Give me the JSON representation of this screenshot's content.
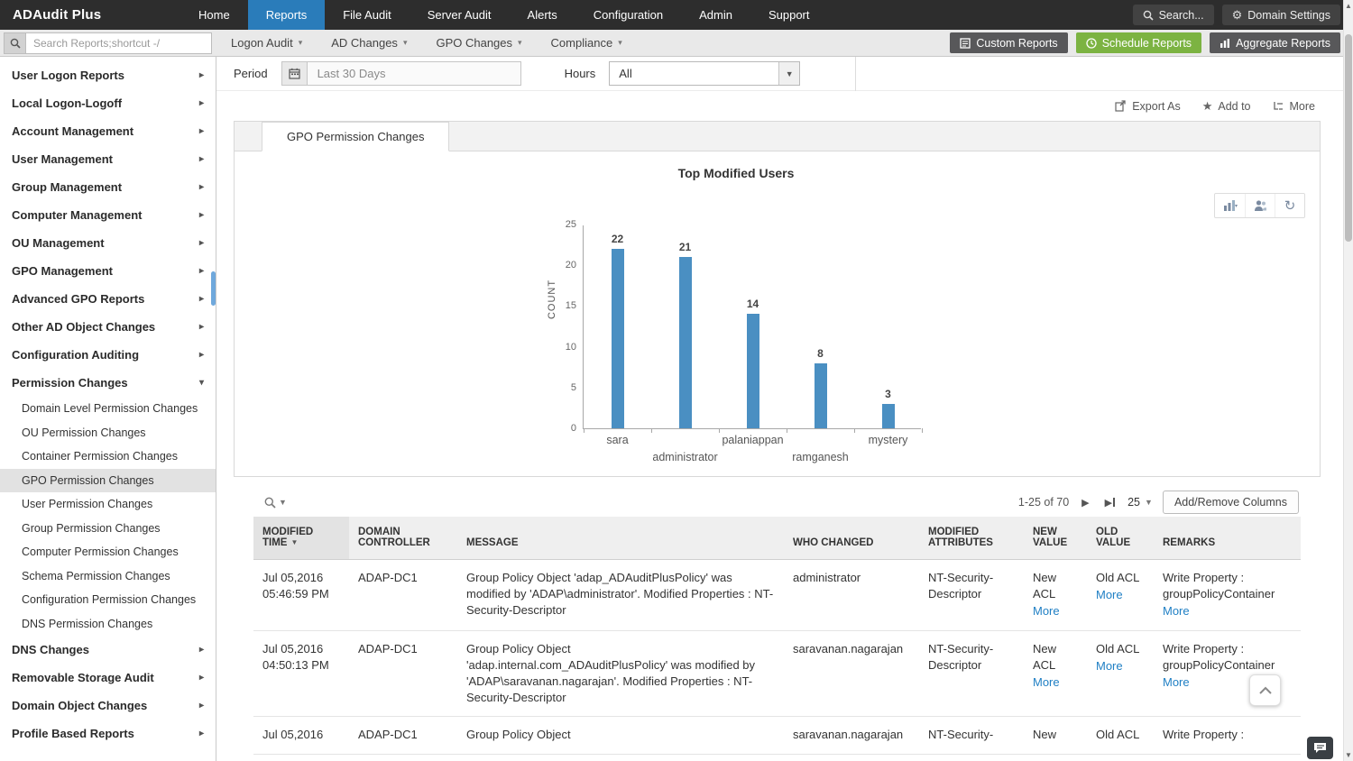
{
  "colors": {
    "accent_blue": "#2a7cba",
    "green": "#7cb342",
    "bar_blue": "#4a8fc2",
    "link_blue": "#1f7fc4",
    "topbar_bg": "#2d2d2d"
  },
  "topbar": {
    "logo": "ADAudit Plus",
    "nav": [
      {
        "label": "Home",
        "active": false
      },
      {
        "label": "Reports",
        "active": true
      },
      {
        "label": "File Audit",
        "active": false
      },
      {
        "label": "Server Audit",
        "active": false
      },
      {
        "label": "Alerts",
        "active": false
      },
      {
        "label": "Configuration",
        "active": false
      },
      {
        "label": "Admin",
        "active": false
      },
      {
        "label": "Support",
        "active": false
      }
    ],
    "search_label": "Search...",
    "domain_settings_label": "Domain Settings"
  },
  "toolbar": {
    "search_placeholder": "Search Reports;shortcut -/",
    "menus": [
      "Logon Audit",
      "AD Changes",
      "GPO Changes",
      "Compliance"
    ],
    "buttons": {
      "custom": "Custom Reports",
      "schedule": "Schedule Reports",
      "aggregate": "Aggregate Reports"
    }
  },
  "sidebar": {
    "items": [
      {
        "label": "User Logon Reports"
      },
      {
        "label": "Local Logon-Logoff"
      },
      {
        "label": "Account Management"
      },
      {
        "label": "User Management"
      },
      {
        "label": "Group Management"
      },
      {
        "label": "Computer Management"
      },
      {
        "label": "OU Management"
      },
      {
        "label": "GPO Management"
      },
      {
        "label": "Advanced GPO Reports"
      },
      {
        "label": "Other AD Object Changes"
      },
      {
        "label": "Configuration Auditing"
      },
      {
        "label": "Permission Changes",
        "expanded": true,
        "children": [
          "Domain Level Permission Changes",
          "OU Permission Changes",
          "Container Permission Changes",
          "GPO Permission Changes",
          "User Permission Changes",
          "Group Permission Changes",
          "Computer Permission Changes",
          "Schema Permission Changes",
          "Configuration Permission Changes",
          "DNS Permission Changes"
        ],
        "selected_child": "GPO Permission Changes"
      },
      {
        "label": "DNS Changes"
      },
      {
        "label": "Removable Storage Audit"
      },
      {
        "label": "Domain Object Changes"
      },
      {
        "label": "Profile Based Reports"
      }
    ]
  },
  "filters": {
    "period_label": "Period",
    "period_value": "Last 30 Days",
    "hours_label": "Hours",
    "hours_value": "All"
  },
  "actions": {
    "export_label": "Export As",
    "add_label": "Add to",
    "more_label": "More"
  },
  "report": {
    "tab": "GPO Permission Changes"
  },
  "chart_data": {
    "type": "bar",
    "title": "Top Modified Users",
    "ylabel": "COUNT",
    "categories": [
      "sara",
      "administrator",
      "palaniappan",
      "ramganesh",
      "mystery"
    ],
    "values": [
      22,
      21,
      14,
      8,
      3
    ],
    "ylim": [
      0,
      25
    ],
    "yticks": [
      0,
      5,
      10,
      15,
      20,
      25
    ],
    "bar_color": "#4a8fc2",
    "grid": false,
    "legend": false
  },
  "table": {
    "pagination": "1-25 of 70",
    "page_size": "25",
    "add_remove_label": "Add/Remove Columns",
    "columns": [
      "MODIFIED TIME",
      "DOMAIN CONTROLLER",
      "MESSAGE",
      "WHO CHANGED",
      "MODIFIED ATTRIBUTES",
      "NEW VALUE",
      "OLD VALUE",
      "REMARKS"
    ],
    "rows": [
      {
        "modified_time": "Jul 05,2016 05:46:59 PM",
        "domain_controller": "ADAP-DC1",
        "message": "Group Policy Object 'adap_ADAuditPlusPolicy' was modified by 'ADAP\\administrator'. Modified Properties : NT-Security-Descriptor",
        "who_changed": "administrator",
        "modified_attributes": "NT-Security-Descriptor",
        "new_value": "New ACL",
        "new_value_link": "More",
        "old_value": "Old ACL",
        "old_value_link": "More",
        "remarks": "Write Property : groupPolicyContainer",
        "remarks_link": "More"
      },
      {
        "modified_time": "Jul 05,2016 04:50:13 PM",
        "domain_controller": "ADAP-DC1",
        "message": "Group Policy Object 'adap.internal.com_ADAuditPlusPolicy' was modified by 'ADAP\\saravanan.nagarajan'. Modified Properties : NT-Security-Descriptor",
        "who_changed": "saravanan.nagarajan",
        "modified_attributes": "NT-Security-Descriptor",
        "new_value": "New ACL",
        "new_value_link": "More",
        "old_value": "Old ACL",
        "old_value_link": "More",
        "remarks": "Write Property : groupPolicyContainer",
        "remarks_link": "More"
      },
      {
        "modified_time": "Jul 05,2016",
        "domain_controller": "ADAP-DC1",
        "message": "Group Policy Object",
        "who_changed": "saravanan.nagarajan",
        "modified_attributes": "NT-Security-",
        "new_value": "New",
        "new_value_link": "",
        "old_value": "Old ACL",
        "old_value_link": "",
        "remarks": "Write Property :",
        "remarks_link": ""
      }
    ]
  }
}
